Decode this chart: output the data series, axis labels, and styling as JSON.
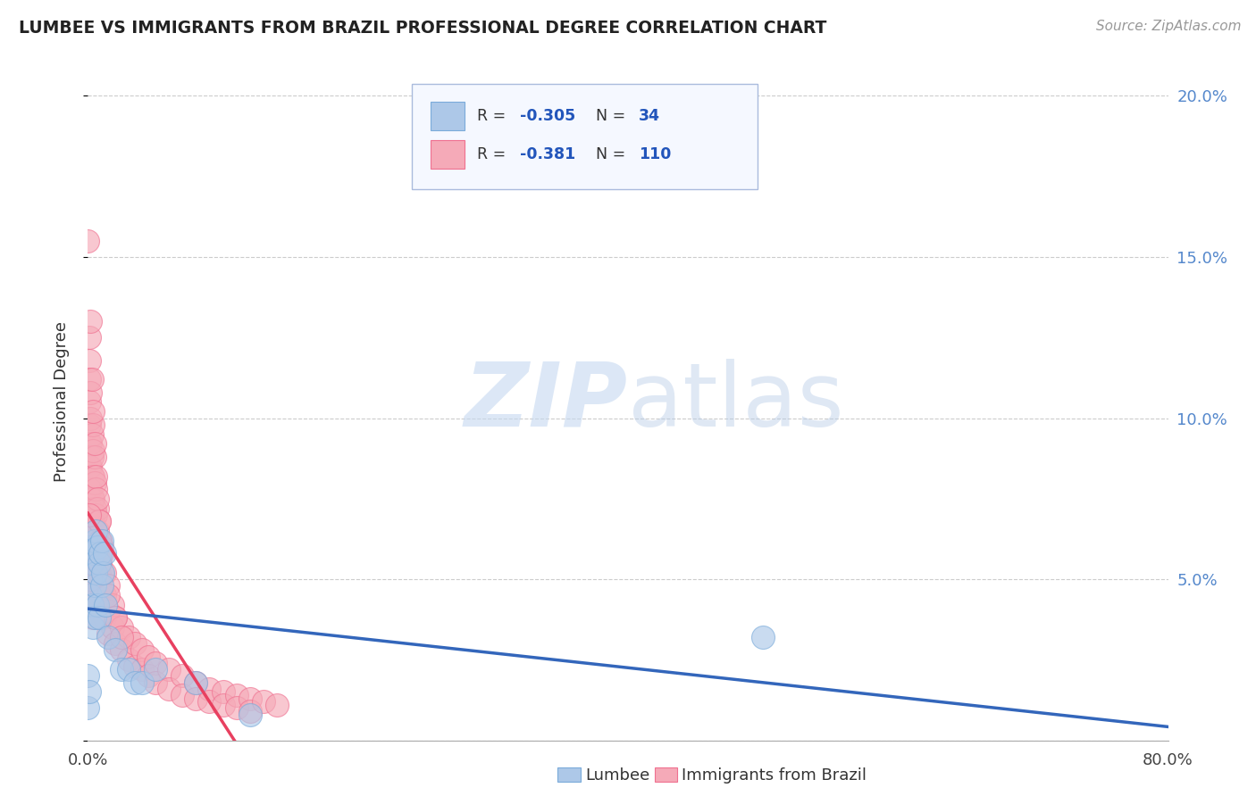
{
  "title": "LUMBEE VS IMMIGRANTS FROM BRAZIL PROFESSIONAL DEGREE CORRELATION CHART",
  "source": "Source: ZipAtlas.com",
  "ylabel": "Professional Degree",
  "xlim": [
    0.0,
    0.8
  ],
  "ylim": [
    0.0,
    0.21
  ],
  "xtick_vals": [
    0.0,
    0.1,
    0.2,
    0.3,
    0.4,
    0.5,
    0.6,
    0.7,
    0.8
  ],
  "xticklabels": [
    "0.0%",
    "",
    "",
    "",
    "",
    "",
    "",
    "",
    "80.0%"
  ],
  "yticks_right": [
    0.05,
    0.1,
    0.15,
    0.2
  ],
  "yticklabels_right": [
    "5.0%",
    "10.0%",
    "15.0%",
    "20.0%"
  ],
  "lumbee_color": "#adc8e8",
  "brazil_color": "#f5aab8",
  "lumbee_edge": "#7aabda",
  "brazil_edge": "#f07090",
  "trend_lumbee_color": "#3366bb",
  "trend_brazil_color": "#e84060",
  "watermark_ZIP": "ZIP",
  "watermark_atlas": "atlas",
  "legend_box_color": "#f0f4ff",
  "legend_border_color": "#aabbdd",
  "bottom_legend_labels": [
    "Lumbee",
    "Immigrants from Brazil"
  ],
  "lumbee_points": [
    [
      0.0,
      0.02
    ],
    [
      0.0,
      0.01
    ],
    [
      0.001,
      0.015
    ],
    [
      0.002,
      0.06
    ],
    [
      0.002,
      0.045
    ],
    [
      0.003,
      0.055
    ],
    [
      0.003,
      0.042
    ],
    [
      0.004,
      0.058
    ],
    [
      0.004,
      0.035
    ],
    [
      0.005,
      0.062
    ],
    [
      0.005,
      0.048
    ],
    [
      0.005,
      0.038
    ],
    [
      0.006,
      0.065
    ],
    [
      0.006,
      0.052
    ],
    [
      0.007,
      0.06
    ],
    [
      0.007,
      0.042
    ],
    [
      0.008,
      0.055
    ],
    [
      0.008,
      0.038
    ],
    [
      0.009,
      0.058
    ],
    [
      0.01,
      0.062
    ],
    [
      0.01,
      0.048
    ],
    [
      0.011,
      0.052
    ],
    [
      0.012,
      0.058
    ],
    [
      0.013,
      0.042
    ],
    [
      0.015,
      0.032
    ],
    [
      0.02,
      0.028
    ],
    [
      0.025,
      0.022
    ],
    [
      0.03,
      0.022
    ],
    [
      0.035,
      0.018
    ],
    [
      0.04,
      0.018
    ],
    [
      0.05,
      0.022
    ],
    [
      0.08,
      0.018
    ],
    [
      0.12,
      0.008
    ],
    [
      0.5,
      0.032
    ]
  ],
  "brazil_points": [
    [
      0.0,
      0.155
    ],
    [
      0.001,
      0.125
    ],
    [
      0.001,
      0.118
    ],
    [
      0.001,
      0.112
    ],
    [
      0.001,
      0.105
    ],
    [
      0.001,
      0.098
    ],
    [
      0.001,
      0.092
    ],
    [
      0.001,
      0.085
    ],
    [
      0.001,
      0.078
    ],
    [
      0.002,
      0.108
    ],
    [
      0.002,
      0.1
    ],
    [
      0.002,
      0.092
    ],
    [
      0.002,
      0.085
    ],
    [
      0.002,
      0.078
    ],
    [
      0.002,
      0.072
    ],
    [
      0.002,
      0.065
    ],
    [
      0.002,
      0.058
    ],
    [
      0.003,
      0.095
    ],
    [
      0.003,
      0.088
    ],
    [
      0.003,
      0.082
    ],
    [
      0.003,
      0.075
    ],
    [
      0.003,
      0.068
    ],
    [
      0.003,
      0.062
    ],
    [
      0.003,
      0.055
    ],
    [
      0.003,
      0.048
    ],
    [
      0.004,
      0.098
    ],
    [
      0.004,
      0.09
    ],
    [
      0.004,
      0.082
    ],
    [
      0.004,
      0.075
    ],
    [
      0.004,
      0.068
    ],
    [
      0.004,
      0.062
    ],
    [
      0.004,
      0.055
    ],
    [
      0.004,
      0.048
    ],
    [
      0.005,
      0.088
    ],
    [
      0.005,
      0.08
    ],
    [
      0.005,
      0.072
    ],
    [
      0.005,
      0.065
    ],
    [
      0.005,
      0.058
    ],
    [
      0.005,
      0.052
    ],
    [
      0.005,
      0.045
    ],
    [
      0.006,
      0.078
    ],
    [
      0.006,
      0.07
    ],
    [
      0.006,
      0.062
    ],
    [
      0.006,
      0.055
    ],
    [
      0.006,
      0.048
    ],
    [
      0.007,
      0.072
    ],
    [
      0.007,
      0.065
    ],
    [
      0.007,
      0.058
    ],
    [
      0.007,
      0.05
    ],
    [
      0.007,
      0.043
    ],
    [
      0.008,
      0.068
    ],
    [
      0.008,
      0.06
    ],
    [
      0.008,
      0.052
    ],
    [
      0.008,
      0.045
    ],
    [
      0.009,
      0.062
    ],
    [
      0.009,
      0.055
    ],
    [
      0.009,
      0.048
    ],
    [
      0.01,
      0.06
    ],
    [
      0.01,
      0.052
    ],
    [
      0.01,
      0.045
    ],
    [
      0.01,
      0.038
    ],
    [
      0.012,
      0.052
    ],
    [
      0.012,
      0.045
    ],
    [
      0.012,
      0.038
    ],
    [
      0.015,
      0.048
    ],
    [
      0.015,
      0.04
    ],
    [
      0.015,
      0.033
    ],
    [
      0.018,
      0.042
    ],
    [
      0.018,
      0.035
    ],
    [
      0.02,
      0.038
    ],
    [
      0.02,
      0.03
    ],
    [
      0.025,
      0.035
    ],
    [
      0.025,
      0.028
    ],
    [
      0.03,
      0.032
    ],
    [
      0.03,
      0.025
    ],
    [
      0.035,
      0.03
    ],
    [
      0.035,
      0.023
    ],
    [
      0.04,
      0.028
    ],
    [
      0.04,
      0.022
    ],
    [
      0.045,
      0.026
    ],
    [
      0.045,
      0.02
    ],
    [
      0.05,
      0.024
    ],
    [
      0.05,
      0.018
    ],
    [
      0.06,
      0.022
    ],
    [
      0.06,
      0.016
    ],
    [
      0.07,
      0.02
    ],
    [
      0.07,
      0.014
    ],
    [
      0.08,
      0.018
    ],
    [
      0.08,
      0.013
    ],
    [
      0.09,
      0.016
    ],
    [
      0.09,
      0.012
    ],
    [
      0.1,
      0.015
    ],
    [
      0.1,
      0.011
    ],
    [
      0.11,
      0.014
    ],
    [
      0.11,
      0.01
    ],
    [
      0.12,
      0.013
    ],
    [
      0.12,
      0.009
    ],
    [
      0.13,
      0.012
    ],
    [
      0.14,
      0.011
    ],
    [
      0.002,
      0.13
    ],
    [
      0.003,
      0.112
    ],
    [
      0.004,
      0.102
    ],
    [
      0.005,
      0.092
    ],
    [
      0.006,
      0.082
    ],
    [
      0.007,
      0.075
    ],
    [
      0.008,
      0.068
    ],
    [
      0.009,
      0.062
    ],
    [
      0.01,
      0.058
    ],
    [
      0.015,
      0.045
    ],
    [
      0.02,
      0.038
    ],
    [
      0.025,
      0.032
    ],
    [
      0.001,
      0.07
    ],
    [
      0.002,
      0.05
    ],
    [
      0.003,
      0.042
    ],
    [
      0.004,
      0.038
    ]
  ]
}
